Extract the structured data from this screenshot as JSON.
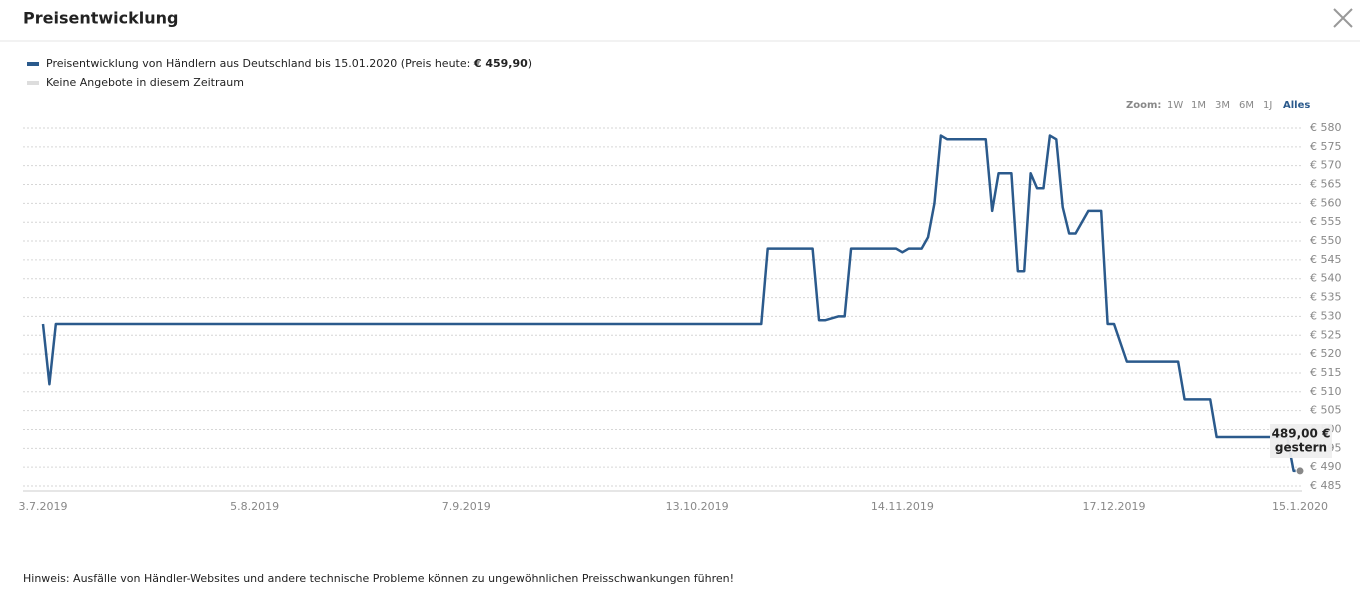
{
  "header": {
    "title": "Preisentwicklung"
  },
  "legend": {
    "items": [
      {
        "text": "Preisentwicklung von Händlern aus Deutschland bis 15.01.2020 (Preis heute: ",
        "bold": "€ 459,90",
        "end": ")",
        "color": "#2b5a8c"
      },
      {
        "text": "Keine Angebote in diesem Zeitraum",
        "color": "#dddddd"
      }
    ]
  },
  "zoom": {
    "label": "Zoom:",
    "options": [
      "1W",
      "1M",
      "3M",
      "6M",
      "1J",
      "Alles"
    ],
    "active": "Alles"
  },
  "tooltip": {
    "price": "489,00 €",
    "when": "gestern"
  },
  "note": "Hinweis: Ausfälle von Händler-Websites und andere technische Probleme können zu ungewöhnlichen Preisschwankungen führen!",
  "chart_data": {
    "type": "line",
    "x": [
      "2019-07-03",
      "2019-07-04",
      "2019-07-05",
      "2019-10-23",
      "2019-10-24",
      "2019-10-31",
      "2019-11-01",
      "2019-11-02",
      "2019-11-04",
      "2019-11-05",
      "2019-11-06",
      "2019-11-13",
      "2019-11-14",
      "2019-11-15",
      "2019-11-17",
      "2019-11-18",
      "2019-11-19",
      "2019-11-20",
      "2019-11-21",
      "2019-11-27",
      "2019-11-28",
      "2019-11-29",
      "2019-12-01",
      "2019-12-02",
      "2019-12-03",
      "2019-12-04",
      "2019-12-05",
      "2019-12-06",
      "2019-12-07",
      "2019-12-08",
      "2019-12-09",
      "2019-12-10",
      "2019-12-11",
      "2019-12-13",
      "2019-12-15",
      "2019-12-16",
      "2019-12-17",
      "2019-12-19",
      "2019-12-27",
      "2019-12-28",
      "2020-01-01",
      "2020-01-02",
      "2020-01-13",
      "2020-01-14",
      "2020-01-15"
    ],
    "series": [
      {
        "color": "#2b5a8c",
        "values": [
          528,
          512,
          528,
          528,
          548,
          548,
          529,
          529,
          530,
          530,
          548,
          548,
          547,
          548,
          548,
          551,
          560,
          578,
          577,
          577,
          558,
          568,
          568,
          542,
          542,
          568,
          564,
          564,
          578,
          577,
          559,
          552,
          552,
          558,
          558,
          528,
          528,
          518,
          518,
          508,
          508,
          498,
          498,
          489,
          489
        ]
      }
    ],
    "xlim": [
      "2019-07-03",
      "2020-01-15"
    ],
    "xticks": [
      {
        "value": "2019-07-03",
        "label": "3.7.2019"
      },
      {
        "value": "2019-08-05",
        "label": "5.8.2019"
      },
      {
        "value": "2019-09-07",
        "label": "7.9.2019"
      },
      {
        "value": "2019-10-13",
        "label": "13.10.2019"
      },
      {
        "value": "2019-11-14",
        "label": "14.11.2019"
      },
      {
        "value": "2019-12-17",
        "label": "17.12.2019"
      },
      {
        "value": "2020-01-15",
        "label": "15.1.2020"
      }
    ],
    "ylim": [
      485,
      580
    ],
    "yticks": [
      {
        "value": 485,
        "label": "€ 485"
      },
      {
        "value": 490,
        "label": "€ 490"
      },
      {
        "value": 495,
        "label": "€ 495"
      },
      {
        "value": 500,
        "label": "€ 500"
      },
      {
        "value": 505,
        "label": "€ 505"
      },
      {
        "value": 510,
        "label": "€ 510"
      },
      {
        "value": 515,
        "label": "€ 515"
      },
      {
        "value": 520,
        "label": "€ 520"
      },
      {
        "value": 525,
        "label": "€ 525"
      },
      {
        "value": 530,
        "label": "€ 530"
      },
      {
        "value": 535,
        "label": "€ 535"
      },
      {
        "value": 540,
        "label": "€ 540"
      },
      {
        "value": 545,
        "label": "€ 545"
      },
      {
        "value": 550,
        "label": "€ 550"
      },
      {
        "value": 555,
        "label": "€ 555"
      },
      {
        "value": 560,
        "label": "€ 560"
      },
      {
        "value": 565,
        "label": "€ 565"
      },
      {
        "value": 570,
        "label": "€ 570"
      },
      {
        "value": 575,
        "label": "€ 575"
      },
      {
        "value": 580,
        "label": "€ 580"
      }
    ],
    "grid": true
  }
}
